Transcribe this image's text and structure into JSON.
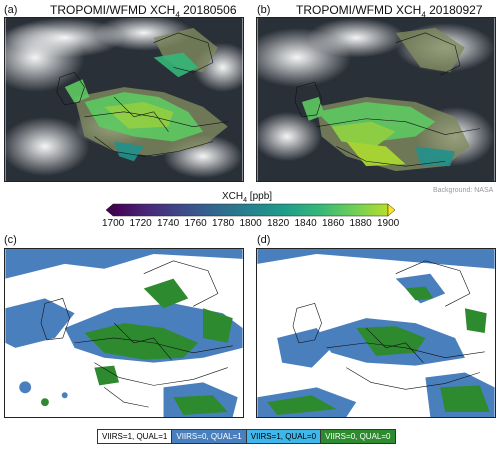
{
  "panels": {
    "a": {
      "label": "(a)",
      "title_pre": "TROPOMI/WFMD XCH",
      "title_sub": "4",
      "title_post": " 20180506"
    },
    "b": {
      "label": "(b)",
      "title_pre": "TROPOMI/WFMD XCH",
      "title_sub": "4",
      "title_post": " 20180927"
    },
    "c": {
      "label": "(c)"
    },
    "d": {
      "label": "(d)"
    }
  },
  "credit": "Background: NASA",
  "colorbar": {
    "title_pre": "XCH",
    "title_sub": "4",
    "title_post": " [ppb]",
    "ticks": [
      "1700",
      "1720",
      "1740",
      "1760",
      "1780",
      "1800",
      "1820",
      "1840",
      "1860",
      "1880",
      "1900"
    ],
    "min": 1700,
    "max": 1900,
    "colormap": "viridis",
    "extend": "both"
  },
  "legend": [
    {
      "label": "VIIRS=1, QUAL=1",
      "color": "#ffffff",
      "text_color": "#000000"
    },
    {
      "label": "VIIRS=0, QUAL=1",
      "color": "#4a7fbd",
      "text_color": "#ffffff"
    },
    {
      "label": "VIIRS=1, QUAL=0",
      "color": "#3fb7ea",
      "text_color": "#000000"
    },
    {
      "label": "VIIRS=0, QUAL=0",
      "color": "#2d8a2e",
      "text_color": "#ffffff"
    }
  ]
}
